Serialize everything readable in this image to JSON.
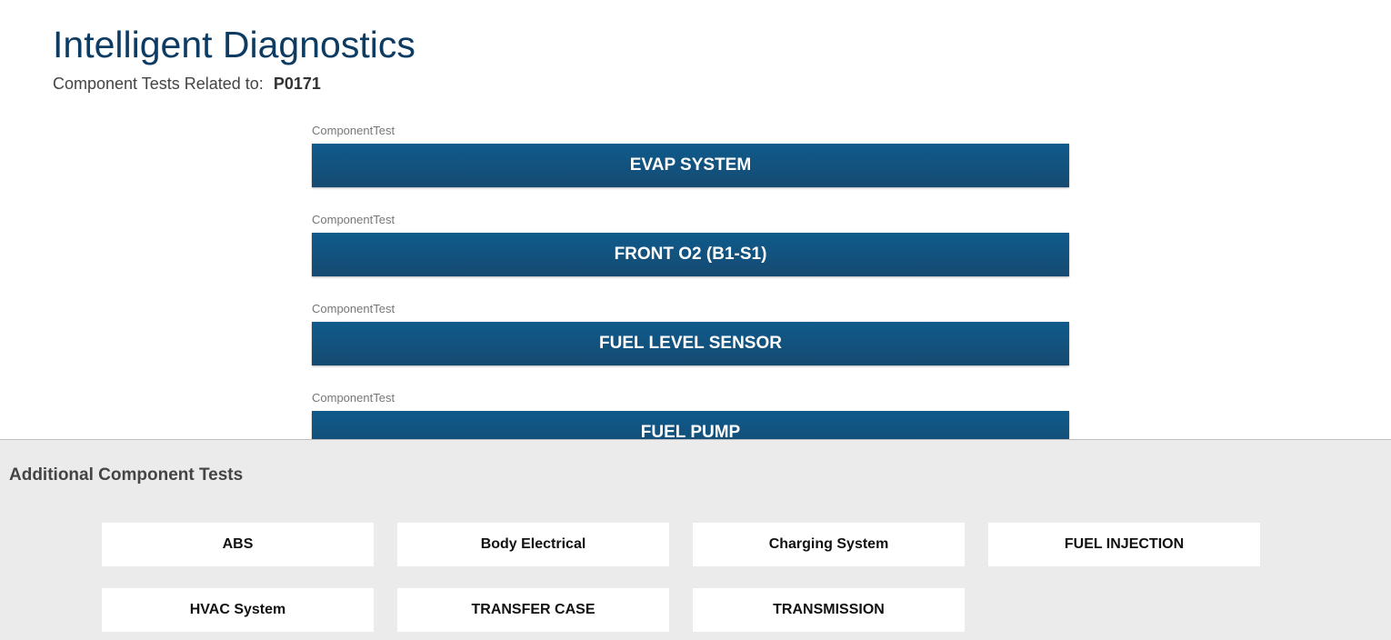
{
  "header": {
    "title": "Intelligent Diagnostics",
    "subtitle_prefix": "Component Tests Related to:",
    "code": "P0171"
  },
  "component_tests": [
    {
      "label": "ComponentTest",
      "button": "EVAP SYSTEM"
    },
    {
      "label": "ComponentTest",
      "button": "FRONT O2 (B1-S1)"
    },
    {
      "label": "ComponentTest",
      "button": "FUEL LEVEL SENSOR"
    },
    {
      "label": "ComponentTest",
      "button": "FUEL PUMP"
    }
  ],
  "additional": {
    "title": "Additional Component Tests",
    "buttons": [
      "ABS",
      "Body Electrical",
      "Charging System",
      "FUEL INJECTION",
      "HVAC System",
      "TRANSFER CASE",
      "TRANSMISSION"
    ]
  },
  "colors": {
    "primary": "#11527f",
    "title": "#0d3b61",
    "panel_bg": "#ebebeb"
  }
}
